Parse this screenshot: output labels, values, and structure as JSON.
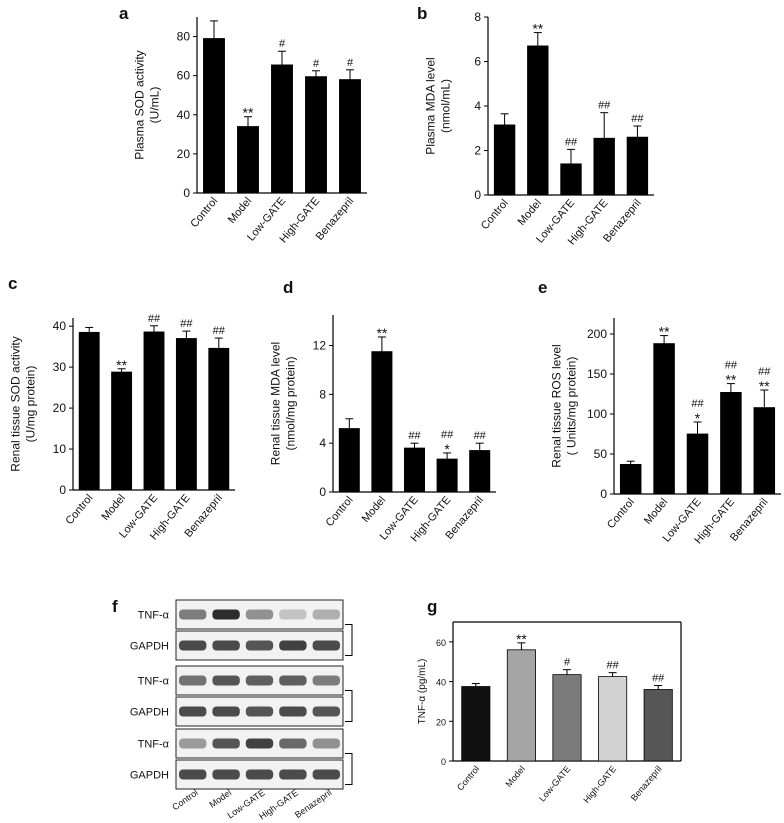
{
  "panel_letters": [
    "a",
    "b",
    "c",
    "d",
    "e",
    "f",
    "g"
  ],
  "common_categories": [
    "Control",
    "Model",
    "Low-GATE",
    "High-GATE",
    "Benazepril"
  ],
  "chart_data": [
    {
      "panel": "a",
      "type": "bar",
      "ylabel_lines": [
        "Plasma SOD activity",
        "(U/mL)"
      ],
      "categories": [
        "Control",
        "Model",
        "Low-GATE",
        "High-GATE",
        "Benazepril"
      ],
      "values": [
        79,
        34,
        65.5,
        59.5,
        58
      ],
      "errors": [
        9,
        5,
        7,
        3,
        5
      ],
      "annotations": [
        "",
        "**",
        "#",
        "#",
        "#"
      ],
      "ylim": [
        0,
        90
      ],
      "yticks": [
        0,
        20,
        40,
        60,
        80
      ],
      "bar_color": "#000000"
    },
    {
      "panel": "b",
      "type": "bar",
      "ylabel_lines": [
        "Plasma MDA level",
        "(nmol/mL)"
      ],
      "categories": [
        "Control",
        "Model",
        "Low-GATE",
        "High-GATE",
        "Benazepril"
      ],
      "values": [
        3.15,
        6.7,
        1.4,
        2.55,
        2.6
      ],
      "errors": [
        0.5,
        0.6,
        0.65,
        1.15,
        0.5
      ],
      "annotations": [
        "",
        "**",
        "##",
        "##",
        "##"
      ],
      "ylim": [
        0,
        8
      ],
      "yticks": [
        0,
        2,
        4,
        6,
        8
      ],
      "bar_color": "#000000"
    },
    {
      "panel": "c",
      "type": "bar",
      "ylabel_lines": [
        "Renal tissue SOD activity",
        "(U/mg protein)"
      ],
      "categories": [
        "Control",
        "Model",
        "Low-GATE",
        "High-GATE",
        "Benazepril"
      ],
      "values": [
        38.5,
        28.8,
        38.6,
        37,
        34.6
      ],
      "errors": [
        1.2,
        0.8,
        1.5,
        1.8,
        2.5
      ],
      "annotations": [
        "",
        "**",
        "##",
        "##",
        "##"
      ],
      "ylim": [
        0,
        42
      ],
      "yticks": [
        0,
        10,
        20,
        30,
        40
      ],
      "bar_color": "#000000"
    },
    {
      "panel": "d",
      "type": "bar",
      "ylabel_lines": [
        "Renal tissue MDA level",
        "(nmol/mg protein)"
      ],
      "categories": [
        "Control",
        "Model",
        "Low-GATE",
        "High-GATE",
        "Benazepril"
      ],
      "values": [
        5.2,
        11.5,
        3.6,
        2.7,
        3.4
      ],
      "errors": [
        0.8,
        1.2,
        0.4,
        0.5,
        0.6
      ],
      "annotations": [
        "",
        "**",
        "##",
        "##\n*",
        "##"
      ],
      "ylim": [
        0,
        14.5
      ],
      "yticks": [
        0,
        4,
        8,
        12
      ],
      "bar_color": "#000000"
    },
    {
      "panel": "e",
      "type": "bar",
      "ylabel_lines": [
        "Renal tissue ROS level",
        "( Units/mg protein)"
      ],
      "categories": [
        "Control",
        "Model",
        "Low-GATE",
        "High-GATE",
        "Benazepril"
      ],
      "values": [
        37,
        188,
        75,
        127,
        108
      ],
      "errors": [
        4,
        10,
        15,
        11,
        22
      ],
      "annotations": [
        "",
        "**",
        "##\n*",
        "##\n**",
        "##\n**"
      ],
      "ylim": [
        0,
        220
      ],
      "yticks": [
        0,
        50,
        100,
        150,
        200
      ],
      "bar_color": "#000000"
    },
    {
      "panel": "g",
      "type": "bar",
      "ylabel_lines": [
        "TNF-α (pg/mL)"
      ],
      "categories": [
        "Control",
        "Model",
        "Low-GATE",
        "High-GATE",
        "Benazepril"
      ],
      "values": [
        37.5,
        56,
        43.5,
        42.5,
        36
      ],
      "errors": [
        1.5,
        3.5,
        2.5,
        2,
        2
      ],
      "annotations": [
        "",
        "**",
        "#",
        "##",
        "##"
      ],
      "bar_colors": [
        "#111111",
        "#a5a5a5",
        "#7b7b7b",
        "#d3d3d3",
        "#565656"
      ],
      "ylim": [
        0,
        70
      ],
      "yticks": [
        0,
        20,
        40,
        60
      ]
    }
  ],
  "western_blot": {
    "panel": "f",
    "lanes": [
      "Control",
      "Model",
      "Low-GATE",
      "High-GATE",
      "Benazepril"
    ],
    "groups": [
      {
        "rows": [
          {
            "label": "TNF-α",
            "intensity": [
              0.55,
              0.95,
              0.45,
              0.2,
              0.3
            ]
          },
          {
            "label": "GAPDH",
            "intensity": [
              0.8,
              0.8,
              0.75,
              0.85,
              0.8
            ]
          }
        ]
      },
      {
        "rows": [
          {
            "label": "TNF-α",
            "intensity": [
              0.6,
              0.75,
              0.7,
              0.7,
              0.55
            ]
          },
          {
            "label": "GAPDH",
            "intensity": [
              0.8,
              0.8,
              0.75,
              0.8,
              0.75
            ]
          }
        ]
      },
      {
        "rows": [
          {
            "label": "TNF-α",
            "intensity": [
              0.4,
              0.75,
              0.85,
              0.65,
              0.45
            ]
          },
          {
            "label": "GAPDH",
            "intensity": [
              0.8,
              0.8,
              0.8,
              0.8,
              0.8
            ]
          }
        ]
      }
    ]
  }
}
